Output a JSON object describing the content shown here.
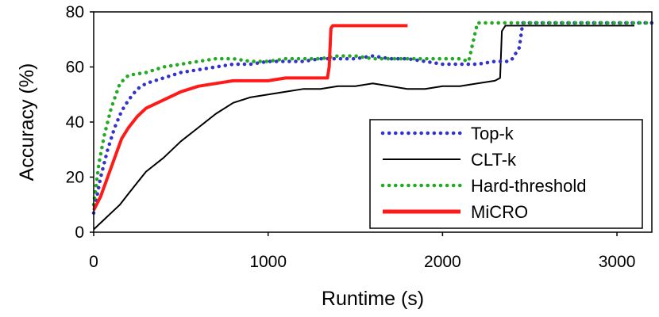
{
  "chart_data": {
    "type": "line",
    "title": "",
    "xlabel": "Runtime (s)",
    "ylabel": "Accuracy (%)",
    "xlim": [
      0,
      3200
    ],
    "ylim": [
      0,
      80
    ],
    "xticks": [
      0,
      1000,
      2000,
      3000
    ],
    "yticks": [
      0,
      20,
      40,
      60,
      80
    ],
    "grid": false,
    "legend_position": "bottom-right",
    "series": [
      {
        "name": "Top-k",
        "color": "#3333cc",
        "style": "dotted",
        "x": [
          0,
          40,
          80,
          120,
          160,
          200,
          250,
          300,
          400,
          500,
          600,
          700,
          800,
          900,
          1000,
          1100,
          1200,
          1300,
          1400,
          1500,
          1600,
          1700,
          1800,
          1900,
          2000,
          2100,
          2200,
          2300,
          2380,
          2400,
          2440,
          2460,
          2600,
          2800,
          3000,
          3200
        ],
        "y": [
          7,
          20,
          30,
          38,
          44,
          48,
          52,
          54,
          56,
          58,
          59,
          60,
          61,
          61,
          62,
          62,
          62,
          63,
          63,
          63,
          64,
          63,
          63,
          62,
          61,
          61,
          61,
          62,
          62,
          63,
          67,
          76,
          76,
          76,
          76,
          76
        ]
      },
      {
        "name": "CLT-k",
        "color": "#000000",
        "style": "solid",
        "x": [
          0,
          50,
          100,
          150,
          200,
          250,
          300,
          400,
          500,
          600,
          700,
          800,
          900,
          1000,
          1100,
          1200,
          1300,
          1400,
          1500,
          1600,
          1700,
          1800,
          1900,
          2000,
          2100,
          2200,
          2300,
          2330,
          2340,
          2360,
          2500,
          2700,
          2900,
          3100
        ],
        "y": [
          1,
          4,
          7,
          10,
          14,
          18,
          22,
          27,
          33,
          38,
          43,
          47,
          49,
          50,
          51,
          52,
          52,
          53,
          53,
          54,
          53,
          52,
          52,
          53,
          53,
          54,
          55,
          56,
          73,
          75,
          75,
          75,
          75,
          75
        ]
      },
      {
        "name": "Hard-threshold",
        "color": "#22aa22",
        "style": "dotted",
        "x": [
          0,
          30,
          60,
          100,
          150,
          200,
          300,
          400,
          500,
          600,
          700,
          800,
          900,
          1000,
          1100,
          1200,
          1300,
          1400,
          1500,
          1600,
          1700,
          1800,
          1900,
          2000,
          2100,
          2150,
          2200,
          2300,
          2500,
          2700,
          3000,
          3200
        ],
        "y": [
          10,
          25,
          35,
          45,
          54,
          57,
          58,
          60,
          61,
          62,
          63,
          63,
          62,
          62,
          63,
          63,
          63,
          64,
          64,
          63,
          63,
          63,
          63,
          63,
          63,
          62,
          76,
          76,
          76,
          76,
          76,
          76
        ]
      },
      {
        "name": "MiCRO",
        "color": "#ff1a1a",
        "style": "solid",
        "x": [
          0,
          40,
          80,
          120,
          160,
          200,
          250,
          300,
          400,
          500,
          600,
          700,
          800,
          900,
          1000,
          1100,
          1200,
          1300,
          1340,
          1350,
          1360,
          1370,
          1400,
          1500,
          1600,
          1700,
          1800
        ],
        "y": [
          8,
          13,
          20,
          27,
          34,
          38,
          42,
          45,
          48,
          51,
          53,
          54,
          55,
          55,
          55,
          56,
          56,
          56,
          56,
          60,
          74,
          75,
          75,
          75,
          75,
          75,
          75
        ]
      }
    ]
  }
}
